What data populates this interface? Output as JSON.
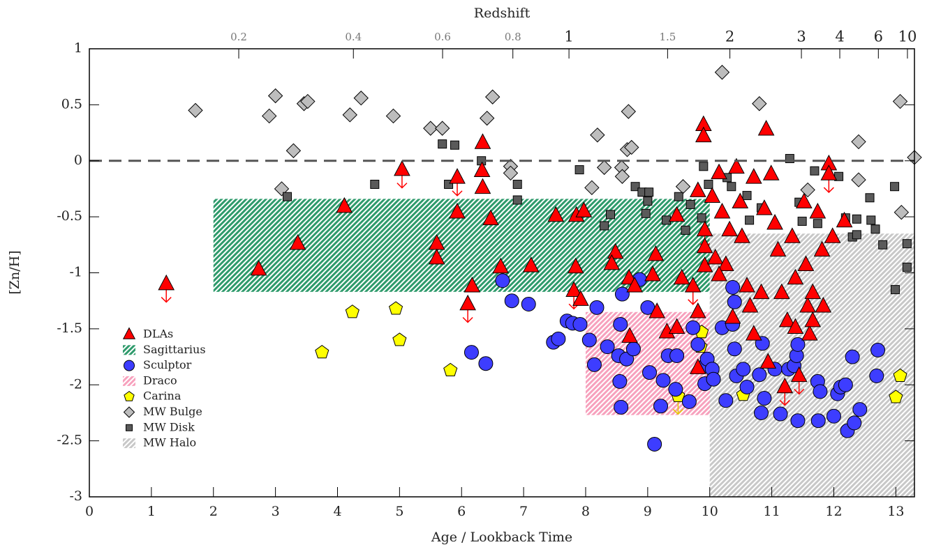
{
  "chart_data": {
    "type": "scatter",
    "x_label": "Age / Lookback Time",
    "y_label": "[Zn/H]",
    "x2_label": "Redshift",
    "xlim": [
      0,
      13.3
    ],
    "xticks": [
      0,
      1,
      2,
      3,
      4,
      5,
      6,
      7,
      8,
      9,
      10,
      11,
      12,
      13
    ],
    "ylim": [
      -3,
      1
    ],
    "yticks": [
      -3,
      -2.5,
      -2,
      -1.5,
      -1,
      -0.5,
      0,
      0.5,
      1
    ],
    "x2ticks": [
      0.2,
      0.4,
      0.6,
      0.8,
      1,
      1.5,
      2,
      3,
      4,
      6,
      10
    ],
    "hline": 0,
    "legend": "lower left",
    "series": [
      {
        "name": "DLAs",
        "marker": "triangle",
        "color": "#ff0000",
        "x": [
          1.24,
          2.73,
          3.36,
          4.11,
          5.04,
          5.6,
          5.6,
          5.93,
          5.93,
          6.17,
          6.1,
          6.34,
          6.33,
          6.34,
          6.47,
          6.63,
          7.12,
          7.52,
          7.85,
          7.97,
          7.84,
          7.81,
          7.92,
          8.48,
          8.42,
          8.7,
          8.79,
          8.71,
          9.13,
          9.08,
          9.15,
          9.31,
          9.47,
          9.47,
          9.55,
          9.73,
          9.81,
          9.81,
          9.9,
          9.9,
          9.92,
          9.92,
          9.92,
          9.81,
          10.15,
          10.04,
          10.2,
          10.32,
          10.09,
          10.26,
          10.43,
          10.49,
          10.52,
          10.6,
          10.65,
          10.71,
          10.71,
          10.88,
          10.91,
          10.99,
          11.05,
          11.1,
          11.16,
          11.25,
          11.21,
          11.33,
          11.38,
          11.44,
          11.52,
          11.55,
          11.58,
          11.61,
          11.66,
          11.74,
          11.81,
          11.83,
          11.92,
          11.92,
          11.98,
          12.17,
          10.37,
          10.83,
          10.94,
          11.38,
          10.15,
          11.66
        ],
        "values": [
          -1.1,
          -0.97,
          -0.74,
          -0.41,
          -0.08,
          -0.74,
          -0.87,
          -0.15,
          -0.46,
          -1.12,
          -1.28,
          0.16,
          -0.09,
          -0.24,
          -0.52,
          -0.95,
          -0.94,
          -0.49,
          -0.49,
          -0.45,
          -0.95,
          -1.16,
          -1.24,
          -0.82,
          -0.92,
          -1.05,
          -1.12,
          -1.57,
          -0.84,
          -1.02,
          -1.35,
          -1.53,
          -1.49,
          -0.49,
          -1.05,
          -1.12,
          -1.35,
          -0.27,
          0.32,
          0.22,
          -0.62,
          -0.94,
          -0.77,
          -1.85,
          -0.11,
          -0.32,
          -0.46,
          -0.62,
          -0.87,
          -0.93,
          -0.06,
          -0.37,
          -0.68,
          -1.12,
          -1.3,
          -1.55,
          -0.15,
          -0.43,
          0.28,
          -0.12,
          -0.56,
          -0.8,
          -1.18,
          -1.43,
          -2.02,
          -0.68,
          -1.05,
          -1.92,
          -0.37,
          -0.93,
          -1.3,
          -1.55,
          -1.18,
          -0.46,
          -0.8,
          -1.3,
          -0.03,
          -0.12,
          -0.68,
          -0.54,
          -1.4,
          -1.18,
          -1.8,
          -1.49,
          -1.02,
          -1.43
        ],
        "upper_limits": [
          true,
          false,
          false,
          false,
          true,
          false,
          false,
          true,
          false,
          false,
          true,
          false,
          false,
          false,
          false,
          false,
          false,
          false,
          false,
          false,
          false,
          true,
          false,
          false,
          false,
          false,
          false,
          false,
          false,
          false,
          false,
          false,
          false,
          false,
          false,
          true,
          false,
          false,
          false,
          false,
          true,
          false,
          false,
          false,
          false,
          false,
          false,
          false,
          false,
          false,
          false,
          false,
          false,
          false,
          false,
          false,
          false,
          false,
          false,
          false,
          false,
          false,
          false,
          false,
          true,
          false,
          false,
          true,
          false,
          false,
          false,
          false,
          false,
          false,
          false,
          false,
          false,
          true,
          false,
          false,
          false,
          false,
          false,
          false,
          false,
          false
        ]
      },
      {
        "name": "Sagittarius",
        "marker": "region",
        "color": "#2e9a6b",
        "x": [
          2,
          10
        ],
        "values": [
          -1.17,
          -0.34
        ]
      },
      {
        "name": "Sculptor",
        "marker": "circle",
        "color": "#3d3dff",
        "x": [
          6.66,
          6.81,
          6.16,
          6.39,
          7.08,
          7.48,
          7.56,
          7.7,
          7.79,
          7.91,
          8.06,
          8.14,
          8.18,
          8.35,
          8.53,
          8.56,
          8.55,
          8.57,
          8.59,
          8.66,
          8.77,
          8.87,
          9.0,
          9.03,
          9.11,
          9.21,
          9.25,
          9.33,
          9.45,
          9.47,
          9.67,
          9.73,
          9.81,
          9.92,
          9.96,
          9.92,
          10.04,
          10.06,
          10.26,
          10.2,
          10.37,
          10.4,
          10.37,
          10.4,
          10.43,
          10.54,
          10.6,
          10.8,
          10.83,
          10.85,
          10.88,
          11.05,
          11.14,
          11.27,
          11.36,
          11.42,
          11.4,
          11.42,
          11.74,
          11.75,
          11.78,
          12.0,
          12.06,
          12.11,
          12.19,
          12.22,
          12.3,
          12.33,
          12.42,
          12.69,
          12.71
        ],
        "values": [
          -1.07,
          -1.25,
          -1.71,
          -1.81,
          -1.28,
          -1.62,
          -1.59,
          -1.43,
          -1.45,
          -1.46,
          -1.6,
          -1.82,
          -1.31,
          -1.66,
          -1.74,
          -1.46,
          -1.97,
          -2.2,
          -1.19,
          -1.77,
          -1.68,
          -1.06,
          -1.31,
          -1.89,
          -2.53,
          -2.19,
          -1.96,
          -1.74,
          -2.04,
          -1.74,
          -2.15,
          -1.49,
          -1.64,
          -1.83,
          -1.77,
          -1.99,
          -1.86,
          -1.95,
          -2.14,
          -1.49,
          -1.13,
          -1.26,
          -1.46,
          -1.68,
          -1.92,
          -1.86,
          -2.02,
          -1.91,
          -2.25,
          -1.63,
          -2.12,
          -1.86,
          -2.26,
          -1.86,
          -1.83,
          -2.32,
          -1.74,
          -1.64,
          -1.97,
          -2.32,
          -2.06,
          -2.28,
          -2.08,
          -2.02,
          -2.0,
          -2.41,
          -1.75,
          -2.34,
          -2.22,
          -1.92,
          -1.69
        ]
      },
      {
        "name": "Draco",
        "marker": "region",
        "color": "#f7a1bd",
        "x": [
          8,
          13.3
        ],
        "values": [
          -2.27,
          -1.35
        ]
      },
      {
        "name": "Carina",
        "marker": "pentagon",
        "color": "#ffff00",
        "x": [
          3.75,
          4.24,
          4.94,
          5.0,
          5.82,
          9.49,
          9.87,
          9.85,
          10.54,
          13.07,
          13.0
        ],
        "values": [
          -1.71,
          -1.35,
          -1.32,
          -1.6,
          -1.87,
          -2.1,
          -1.53,
          -1.66,
          -2.09,
          -1.92,
          -2.11
        ],
        "upper_limits": [
          false,
          false,
          false,
          false,
          false,
          true,
          false,
          false,
          false,
          false,
          false
        ]
      },
      {
        "name": "MW Bulge",
        "marker": "diamond",
        "color": "#bdbdbd",
        "x": [
          1.71,
          2.9,
          3.0,
          3.1,
          3.29,
          3.46,
          3.52,
          4.2,
          4.38,
          4.9,
          5.5,
          5.69,
          6.41,
          6.5,
          6.79,
          6.79,
          8.1,
          8.19,
          8.3,
          8.58,
          8.59,
          8.69,
          8.67,
          8.74,
          9.57,
          10.2,
          10.8,
          11.58,
          12.4,
          12.4,
          13.07,
          13.09,
          13.3
        ],
        "values": [
          0.45,
          0.4,
          0.58,
          -0.25,
          0.09,
          0.51,
          0.53,
          0.41,
          0.56,
          0.4,
          0.29,
          0.29,
          0.38,
          0.57,
          -0.05,
          -0.11,
          -0.24,
          0.23,
          -0.06,
          -0.06,
          -0.14,
          0.44,
          0.1,
          0.12,
          -0.23,
          0.79,
          0.51,
          -0.26,
          0.17,
          -0.17,
          0.53,
          -0.46,
          0.03
        ]
      },
      {
        "name": "MW Disk",
        "marker": "square",
        "color": "#5a5a5a",
        "x": [
          3.19,
          4.6,
          5.69,
          5.89,
          5.79,
          6.32,
          6.9,
          6.9,
          7.9,
          8.3,
          8.4,
          8.8,
          8.91,
          9.0,
          9.02,
          8.97,
          9.3,
          9.5,
          9.61,
          9.69,
          9.87,
          9.9,
          9.98,
          10.28,
          10.35,
          10.6,
          10.64,
          10.83,
          11.29,
          11.44,
          11.49,
          11.69,
          11.74,
          12.08,
          12.19,
          12.3,
          12.37,
          12.37,
          12.58,
          12.6,
          12.67,
          12.79,
          12.98,
          13.18,
          13.18,
          12.99
        ],
        "values": [
          -0.32,
          -0.21,
          0.15,
          0.14,
          -0.21,
          0.0,
          -0.21,
          -0.35,
          -0.08,
          -0.58,
          -0.48,
          -0.23,
          -0.28,
          -0.36,
          -0.28,
          -0.47,
          -0.53,
          -0.32,
          -0.62,
          -0.39,
          -0.51,
          -0.05,
          -0.21,
          -0.15,
          -0.23,
          -0.31,
          -0.53,
          -0.42,
          0.02,
          -0.37,
          -0.54,
          -0.09,
          -0.56,
          -0.14,
          -0.51,
          -0.68,
          -0.52,
          -0.66,
          -0.33,
          -0.53,
          -0.61,
          -0.75,
          -0.23,
          -0.74,
          -0.95,
          -1.15
        ]
      },
      {
        "name": "MW Halo",
        "marker": "region",
        "color": "#c8c8c8",
        "x": [
          10,
          13.3
        ],
        "values": [
          -3,
          -0.65
        ]
      }
    ]
  }
}
